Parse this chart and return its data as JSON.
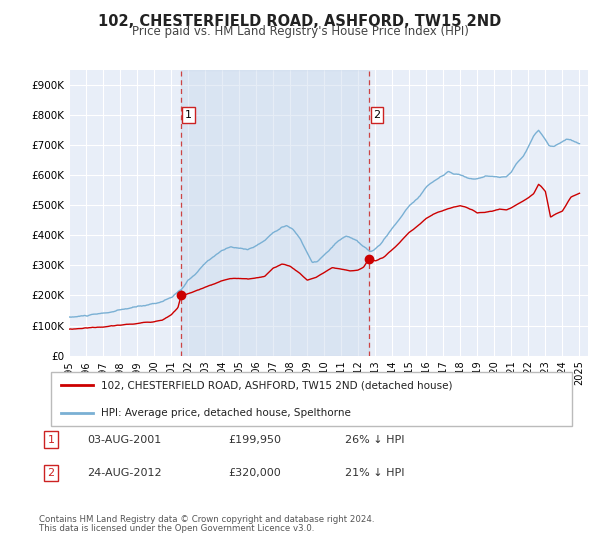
{
  "title": "102, CHESTERFIELD ROAD, ASHFORD, TW15 2ND",
  "subtitle": "Price paid vs. HM Land Registry's House Price Index (HPI)",
  "legend_line1": "102, CHESTERFIELD ROAD, ASHFORD, TW15 2ND (detached house)",
  "legend_line2": "HPI: Average price, detached house, Spelthorne",
  "red_color": "#cc0000",
  "blue_color": "#7ab0d4",
  "annotation1_label": "1",
  "annotation1_date": "03-AUG-2001",
  "annotation1_price": "£199,950",
  "annotation1_hpi": "26% ↓ HPI",
  "annotation1_year": 2001.58,
  "annotation1_value": 199950,
  "annotation2_label": "2",
  "annotation2_date": "24-AUG-2012",
  "annotation2_price": "£320,000",
  "annotation2_hpi": "21% ↓ HPI",
  "annotation2_year": 2012.64,
  "annotation2_value": 320000,
  "ylim_max": 950000,
  "ylim_min": 0,
  "xlim_min": 1995,
  "xlim_max": 2025.5,
  "footer1": "Contains HM Land Registry data © Crown copyright and database right 2024.",
  "footer2": "This data is licensed under the Open Government Licence v3.0.",
  "background_color": "#e8eef8",
  "vspan_color": "#c8d8ec",
  "grid_color": "#ffffff",
  "dashed_color": "#cc4444"
}
